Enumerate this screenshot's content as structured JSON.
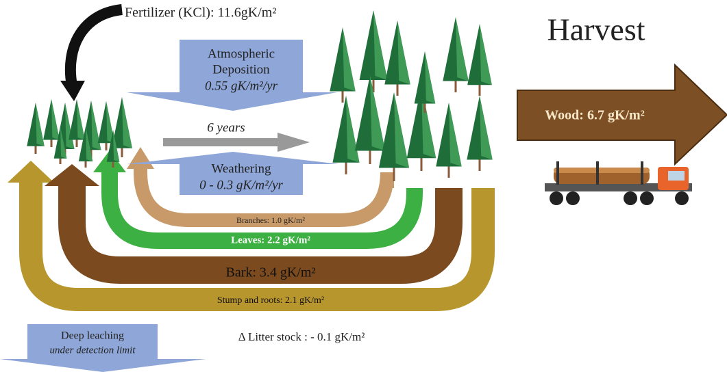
{
  "fertilizer": "Fertilizer (KCl): 11.6gK/m²",
  "atmospheric_deposition": {
    "title_line1": "Atmospheric",
    "title_line2": "Deposition",
    "value": "0.55 gK/m²/yr"
  },
  "duration": "6 years",
  "weathering": {
    "title": "Weathering",
    "value": "0 - 0.3 gK/m²/yr"
  },
  "harvest": {
    "title": "Harvest",
    "wood": "Wood: 6.7 gK/m²"
  },
  "residues": {
    "branches": "Branches: 1.0 gK/m²",
    "leaves": "Leaves: 2.2 gK/m²",
    "bark": "Bark: 3.4 gK/m²",
    "stump_roots": "Stump and roots: 2.1 gK/m²"
  },
  "litter": "Δ Litter stock : - 0.1 gK/m²",
  "deep_leaching": {
    "title": "Deep leaching",
    "value": "under detection limit"
  }
}
